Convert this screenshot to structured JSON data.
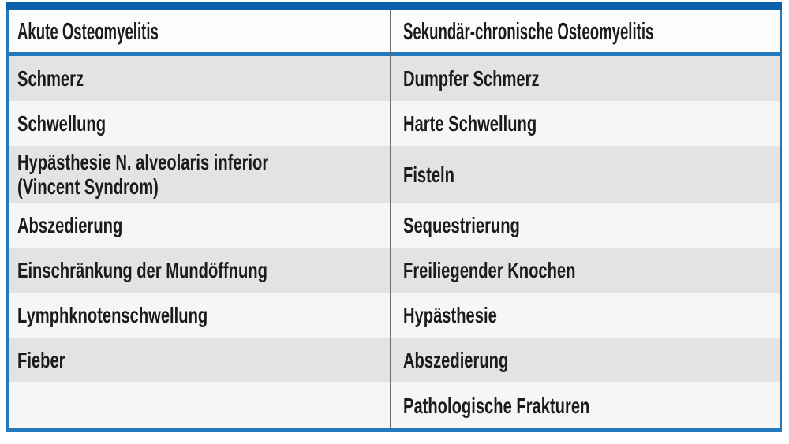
{
  "table": {
    "columns": [
      {
        "header": "Akute Osteomyelitis",
        "rows": [
          "Schmerz",
          "Schwellung",
          "Hypästhesie N. alveolaris inferior\n(Vincent Syndrom)",
          "Abszedierung",
          "Einschränkung der Mundöffnung",
          "Lymphknotenschwellung",
          "Fieber",
          ""
        ]
      },
      {
        "header": "Sekundär-chronische Osteomyelitis",
        "rows": [
          "Dumpfer Schmerz",
          "Harte Schwellung",
          "Fisteln",
          "Sequestrierung",
          "Freiliegender Knochen",
          "Hypästhesie",
          "Abszedierung",
          "Pathologische Frakturen"
        ]
      }
    ]
  },
  "colors": {
    "frame_top": "#0c61ab",
    "frame_line": "#2478bc",
    "divider": "#6f6f6f",
    "row_shaded": "#e3e3e3",
    "row_plain": "#f6f6f6",
    "header_bg": "#fcfcfc",
    "text": "#1b1b1b"
  }
}
